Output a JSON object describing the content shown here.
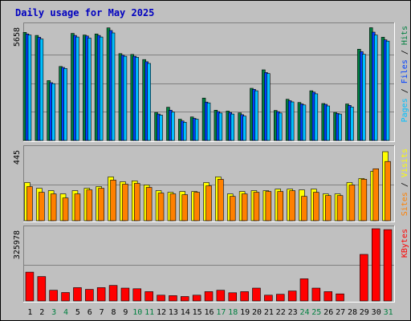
{
  "chart_data": {
    "title": "Daily usage for May 2025",
    "days": [
      "1",
      "2",
      "3",
      "4",
      "5",
      "6",
      "7",
      "8",
      "9",
      "10",
      "11",
      "12",
      "13",
      "14",
      "15",
      "16",
      "17",
      "18",
      "19",
      "20",
      "21",
      "22",
      "23",
      "24",
      "25",
      "26",
      "27",
      "28",
      "29",
      "30",
      "31"
    ],
    "weekend_days": [
      3,
      4,
      10,
      11,
      17,
      18,
      24,
      25,
      31
    ],
    "colors": {
      "background": "#c0c0c0",
      "title": "#0000c0",
      "hits": "#008040",
      "files": "#0040ff",
      "pages": "#00c0ff",
      "visits": "#ffff00",
      "sites": "#ff8000",
      "kbytes": "#ff0000",
      "weekday_label": "#000000",
      "weekend_label": "#008040"
    },
    "panels": [
      {
        "type": "bar",
        "max_label": "5658",
        "ymax": 5658,
        "side_label": [
          {
            "text": "Pages",
            "color": "#00c0ff"
          },
          {
            "text": " / ",
            "color": "#000000"
          },
          {
            "text": "Files",
            "color": "#0040ff"
          },
          {
            "text": " / ",
            "color": "#000000"
          },
          {
            "text": "Hits",
            "color": "#008040"
          }
        ],
        "series": [
          {
            "name": "Hits",
            "values": [
              5330,
              5180,
              2950,
              3650,
              5280,
              5200,
              5250,
              5550,
              4280,
              4240,
              3990,
              1380,
              1640,
              1050,
              1160,
              2090,
              1490,
              1450,
              1360,
              2570,
              3480,
              1480,
              2030,
              1870,
              2450,
              1820,
              1380,
              1800,
              4500,
              5560,
              5090
            ],
            "colors": [
              "#008040"
            ]
          },
          {
            "name": "Files",
            "values": [
              5250,
              5090,
              2850,
              3600,
              5180,
              5150,
              5180,
              5420,
              4200,
              4150,
              3880,
              1300,
              1490,
              960,
              1090,
              1890,
              1420,
              1380,
              1270,
              2520,
              3350,
              1420,
              1960,
              1800,
              2380,
              1780,
              1330,
              1730,
              4380,
              5340,
              4960
            ],
            "colors": [
              "#0040ff"
            ]
          },
          {
            "name": "Pages",
            "values": [
              5200,
              5000,
              2800,
              3550,
              5100,
              5050,
              5100,
              5300,
              4150,
              4100,
              3800,
              1250,
              1400,
              900,
              1050,
              1850,
              1350,
              1300,
              1200,
              2450,
              3300,
              1350,
              1900,
              1750,
              2300,
              1700,
              1300,
              1650,
              4250,
              5200,
              4900
            ],
            "colors": [
              "#00c0ff"
            ]
          }
        ]
      },
      {
        "type": "bar",
        "max_label": "445",
        "ymax": 445,
        "side_label": [
          {
            "text": "Sites",
            "color": "#ff8000"
          },
          {
            "text": " / ",
            "color": "#000000"
          },
          {
            "text": "Visits",
            "color": "#ffff00"
          }
        ],
        "series": [
          {
            "name": "Visits",
            "values": [
              235,
              200,
              185,
              165,
              185,
              200,
              210,
              270,
              240,
              245,
              220,
              185,
              175,
              180,
              180,
              235,
              270,
              165,
              180,
              185,
              185,
              195,
              195,
              190,
              195,
              165,
              165,
              235,
              260,
              305,
              425
            ],
            "colors": [
              "#ffff00"
            ]
          },
          {
            "name": "Sites",
            "values": [
              210,
              175,
              165,
              140,
              165,
              190,
              200,
              250,
              225,
              230,
              205,
              170,
              165,
              160,
              175,
              215,
              255,
              150,
              165,
              175,
              180,
              180,
              185,
              150,
              175,
              155,
              155,
              220,
              255,
              320,
              365
            ],
            "colors": [
              "#ff8000"
            ]
          }
        ]
      },
      {
        "type": "bar",
        "max_label": "325978",
        "ymax": 325978,
        "side_label": [
          {
            "text": "KBytes",
            "color": "#ff0000"
          }
        ],
        "series": [
          {
            "name": "KBytes",
            "values": [
              130000,
              110000,
              48000,
              38000,
              60000,
              52000,
              60000,
              70000,
              58000,
              55000,
              42000,
              26000,
              24000,
              20000,
              26000,
              42000,
              48000,
              37000,
              42000,
              58000,
              26000,
              30000,
              45000,
              100000,
              58000,
              42000,
              32000,
              0,
              210000,
              325978,
              322000
            ],
            "colors": [
              "#ff0000"
            ]
          }
        ]
      }
    ]
  }
}
